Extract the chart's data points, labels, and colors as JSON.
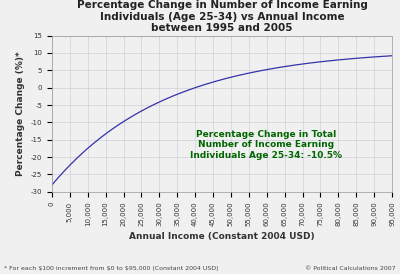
{
  "title": "Percentage Change in Number of Income Earning\nIndividuals (Age 25-34) vs Annual Income\nbetween 1995 and 2005",
  "xlabel": "Annual Income (Constant 2004 USD)",
  "ylabel": "Percentage Change (%)*",
  "xlim": [
    0,
    95000
  ],
  "ylim": [
    -30,
    15
  ],
  "yticks": [
    -30,
    -25,
    -20,
    -15,
    -10,
    -5,
    0,
    5,
    10,
    15
  ],
  "xtick_step": 5000,
  "line_color": "#3333aa",
  "background_color": "#f0f0f0",
  "grid_color": "#c8c8d8",
  "annotation_text": "Percentage Change in Total\nNumber of Income Earning\nIndividuals Age 25-34: -10.5%",
  "annotation_color": "#006600",
  "footnote_left": "* For each $100 increment from $0 to $95,000 (Constant 2004 USD)",
  "footnote_right": "© Political Calculations 2007",
  "title_fontsize": 7.5,
  "axis_label_fontsize": 6.5,
  "tick_fontsize": 5.0,
  "annotation_fontsize": 6.5,
  "footnote_fontsize": 4.5,
  "curve_A": 39.0,
  "curve_B": -28.0,
  "curve_tau": 14000.0,
  "curve_asymptote": 11.2
}
